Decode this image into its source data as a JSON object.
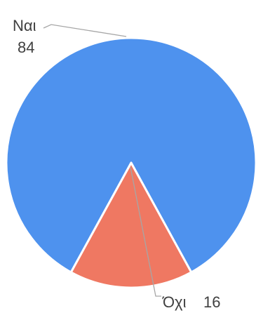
{
  "chart_data": {
    "type": "pie",
    "title": "",
    "categories": [
      "Ναι",
      "Όχι"
    ],
    "values": [
      84,
      16
    ],
    "colors": [
      "#4e92ee",
      "#ef7862"
    ],
    "legend": "none",
    "data_labels": [
      {
        "category": "Ναι",
        "value": "84"
      },
      {
        "category": "Όχι",
        "value": "16"
      }
    ]
  }
}
